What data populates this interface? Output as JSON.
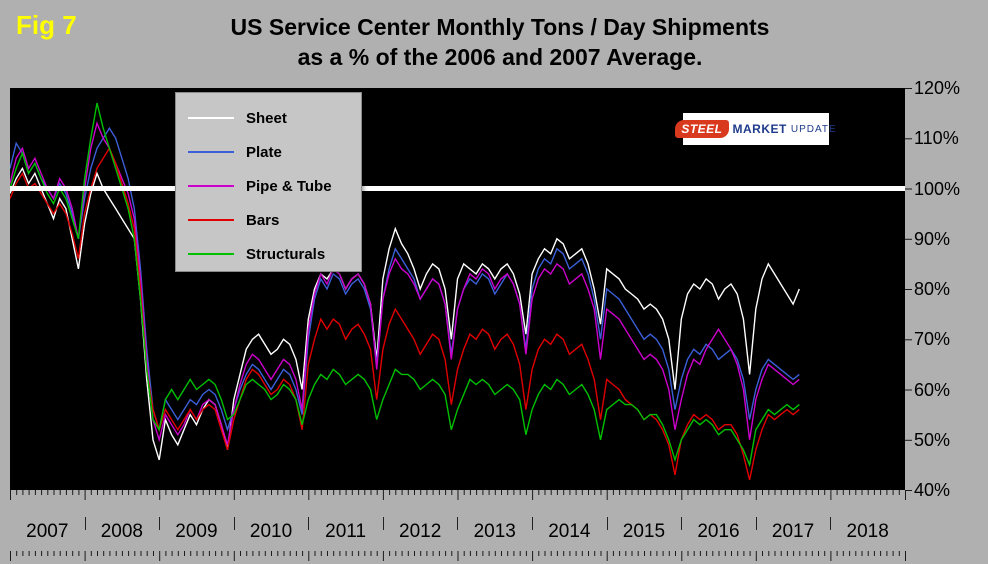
{
  "fig_label": "Fig 7",
  "title": {
    "line1": "US Service Center Monthly Tons / Day Shipments",
    "line2": "as a % of the 2006 and 2007 Average."
  },
  "logo": {
    "steel": "STEEL",
    "market": "MARKET",
    "update": "UPDATE"
  },
  "colors": {
    "background": "#b0b0b0",
    "plot_background": "#000000",
    "reference_line": "#ffffff",
    "fig_label": "#ffff00",
    "legend_background": "#c6c6c6"
  },
  "chart_data": {
    "type": "line",
    "title": "US Service Center Monthly Tons / Day Shipments as a % of the 2006 and 2007 Average.",
    "x_axis_years": [
      "2007",
      "2008",
      "2009",
      "2010",
      "2011",
      "2012",
      "2013",
      "2014",
      "2015",
      "2016",
      "2017",
      "2018"
    ],
    "x_axis_range": [
      2007,
      2019
    ],
    "x_start_year": 2007,
    "x_step_months": 1,
    "y_ticks": [
      "120%",
      "110%",
      "100%",
      "90%",
      "80%",
      "70%",
      "60%",
      "50%",
      "40%"
    ],
    "ylim": [
      40,
      120
    ],
    "reference_line": 100,
    "legend_position": "top-left",
    "grid": false,
    "series": [
      {
        "name": "Sheet",
        "color": "#ffffff",
        "values": [
          99,
          102,
          104,
          101,
          103,
          100,
          97,
          94,
          98,
          96,
          90,
          84,
          93,
          99,
          103,
          100,
          98,
          96,
          94,
          92,
          90,
          78,
          62,
          50,
          46,
          54,
          51,
          49,
          52,
          55,
          53,
          56,
          58,
          57,
          53,
          48,
          58,
          63,
          68,
          70,
          71,
          69,
          67,
          68,
          70,
          69,
          66,
          60,
          74,
          80,
          83,
          82,
          84,
          83,
          80,
          82,
          83,
          81,
          77,
          66,
          82,
          88,
          92,
          89,
          87,
          84,
          80,
          83,
          85,
          84,
          80,
          70,
          82,
          85,
          84,
          83,
          85,
          84,
          82,
          84,
          85,
          83,
          79,
          71,
          83,
          86,
          88,
          87,
          90,
          89,
          86,
          87,
          88,
          85,
          80,
          73,
          84,
          83,
          82,
          80,
          79,
          78,
          76,
          77,
          76,
          74,
          70,
          60,
          74,
          79,
          81,
          80,
          82,
          81,
          78,
          80,
          81,
          79,
          74,
          63,
          76,
          82,
          85,
          83,
          81,
          79,
          77,
          80
        ]
      },
      {
        "name": "Plate",
        "color": "#3b5fd9",
        "values": [
          104,
          109,
          107,
          103,
          105,
          102,
          100,
          98,
          101,
          99,
          95,
          90,
          98,
          104,
          108,
          110,
          112,
          110,
          106,
          102,
          96,
          84,
          68,
          56,
          52,
          58,
          56,
          54,
          56,
          58,
          57,
          59,
          60,
          59,
          56,
          52,
          56,
          60,
          63,
          65,
          64,
          62,
          60,
          62,
          64,
          63,
          60,
          55,
          70,
          78,
          82,
          80,
          83,
          82,
          79,
          81,
          82,
          80,
          76,
          65,
          78,
          84,
          88,
          86,
          84,
          82,
          78,
          80,
          82,
          81,
          77,
          67,
          76,
          80,
          82,
          81,
          83,
          82,
          79,
          81,
          83,
          81,
          77,
          68,
          80,
          84,
          86,
          85,
          88,
          87,
          84,
          85,
          86,
          83,
          78,
          70,
          80,
          79,
          78,
          76,
          74,
          72,
          70,
          71,
          70,
          68,
          64,
          56,
          62,
          66,
          68,
          67,
          69,
          68,
          66,
          67,
          68,
          66,
          62,
          54,
          60,
          64,
          66,
          65,
          64,
          63,
          62,
          63
        ]
      },
      {
        "name": "Pipe & Tube",
        "color": "#cc00cc",
        "values": [
          101,
          106,
          108,
          104,
          106,
          103,
          100,
          98,
          102,
          100,
          96,
          90,
          100,
          108,
          113,
          110,
          108,
          105,
          102,
          99,
          94,
          82,
          66,
          54,
          50,
          55,
          53,
          51,
          53,
          56,
          54,
          57,
          58,
          57,
          53,
          49,
          56,
          61,
          65,
          67,
          66,
          64,
          62,
          64,
          66,
          65,
          62,
          56,
          72,
          79,
          83,
          81,
          84,
          83,
          80,
          82,
          83,
          81,
          77,
          64,
          78,
          83,
          86,
          84,
          83,
          81,
          78,
          80,
          82,
          81,
          77,
          66,
          76,
          80,
          83,
          82,
          84,
          83,
          80,
          82,
          83,
          81,
          77,
          67,
          78,
          82,
          84,
          83,
          85,
          84,
          81,
          82,
          83,
          80,
          76,
          66,
          76,
          75,
          74,
          72,
          70,
          68,
          66,
          67,
          66,
          64,
          60,
          52,
          58,
          63,
          66,
          65,
          68,
          70,
          72,
          70,
          68,
          65,
          60,
          50,
          58,
          62,
          65,
          64,
          63,
          62,
          61,
          62
        ]
      },
      {
        "name": "Bars",
        "color": "#e00000",
        "values": [
          98,
          101,
          103,
          100,
          101,
          99,
          97,
          95,
          97,
          95,
          91,
          86,
          95,
          100,
          104,
          106,
          108,
          105,
          101,
          97,
          92,
          80,
          64,
          56,
          52,
          56,
          54,
          52,
          54,
          56,
          54,
          56,
          57,
          56,
          52,
          48,
          54,
          58,
          62,
          64,
          63,
          61,
          59,
          60,
          62,
          61,
          58,
          52,
          65,
          70,
          74,
          72,
          74,
          73,
          70,
          72,
          73,
          71,
          68,
          58,
          68,
          73,
          76,
          74,
          72,
          70,
          67,
          69,
          71,
          70,
          66,
          57,
          64,
          68,
          71,
          70,
          72,
          71,
          68,
          70,
          71,
          69,
          65,
          56,
          64,
          68,
          70,
          69,
          71,
          70,
          67,
          68,
          69,
          66,
          62,
          54,
          62,
          61,
          60,
          58,
          57,
          56,
          54,
          55,
          54,
          52,
          49,
          43,
          50,
          53,
          55,
          54,
          55,
          54,
          52,
          53,
          53,
          51,
          47,
          42,
          48,
          52,
          55,
          54,
          55,
          56,
          55,
          56
        ]
      },
      {
        "name": "Structurals",
        "color": "#00c000",
        "values": [
          100,
          104,
          107,
          103,
          105,
          102,
          99,
          97,
          100,
          98,
          94,
          90,
          102,
          110,
          117,
          112,
          108,
          104,
          100,
          96,
          90,
          78,
          64,
          54,
          52,
          58,
          60,
          58,
          60,
          62,
          60,
          61,
          62,
          61,
          58,
          54,
          55,
          58,
          61,
          62,
          61,
          60,
          58,
          59,
          61,
          60,
          58,
          53,
          58,
          61,
          63,
          62,
          64,
          63,
          61,
          62,
          63,
          62,
          60,
          54,
          58,
          61,
          64,
          63,
          63,
          62,
          60,
          61,
          62,
          61,
          59,
          52,
          56,
          59,
          62,
          61,
          62,
          61,
          59,
          60,
          61,
          60,
          58,
          51,
          56,
          59,
          61,
          60,
          62,
          61,
          59,
          60,
          61,
          59,
          56,
          50,
          56,
          57,
          58,
          57,
          57,
          56,
          54,
          55,
          55,
          53,
          50,
          46,
          50,
          52,
          54,
          53,
          54,
          53,
          51,
          52,
          52,
          50,
          48,
          45,
          52,
          54,
          56,
          55,
          56,
          57,
          56,
          57
        ]
      }
    ]
  }
}
